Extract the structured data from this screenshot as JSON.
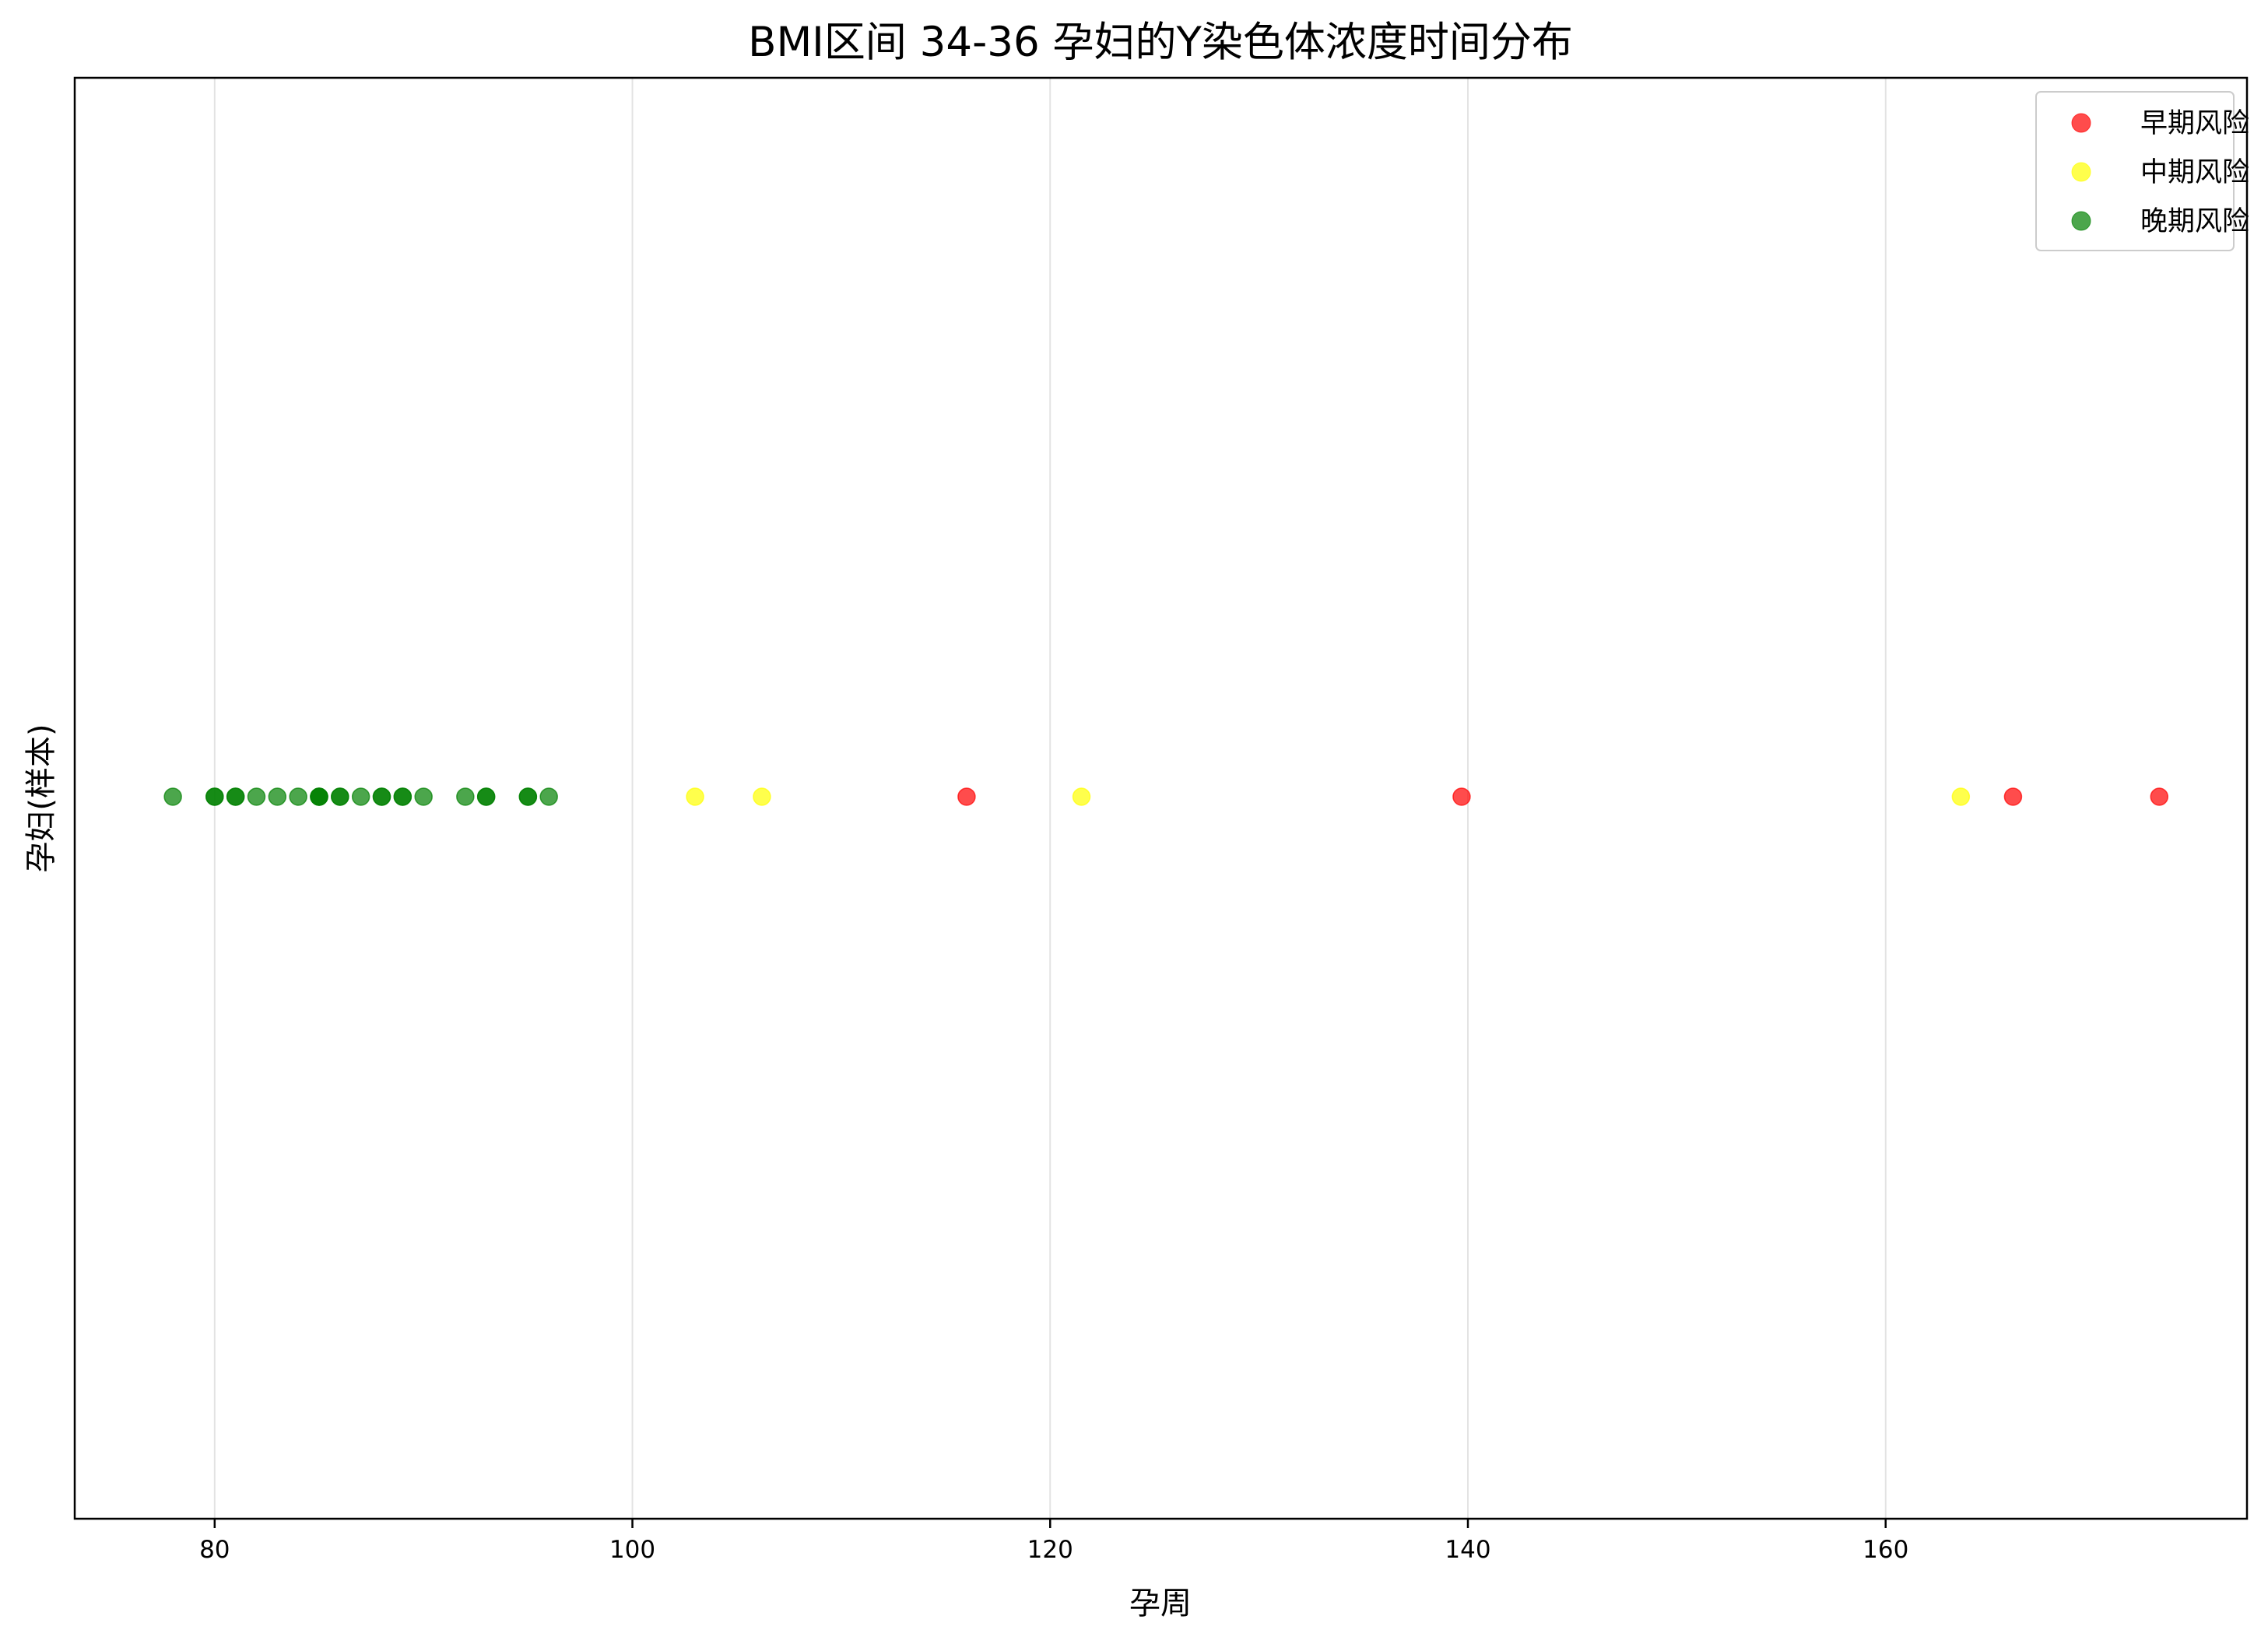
{
  "chart_data": {
    "type": "scatter",
    "title": "BMI区间 34-36 孕妇的Y染色体浓度时间分布",
    "xlabel": "孕周",
    "ylabel": "孕妇(样本)",
    "xlim": [
      73.3,
      177.3
    ],
    "xticks": [
      80,
      100,
      120,
      140,
      160
    ],
    "grid": "vertical",
    "legend": "top-right",
    "series": [
      {
        "name": "早期风险",
        "color": "#ff0000",
        "x": [
          116.0,
          139.7,
          166.1,
          173.1
        ]
      },
      {
        "name": "中期风险",
        "color": "#ffff00",
        "x": [
          103.0,
          106.2,
          121.5,
          163.6
        ]
      },
      {
        "name": "晚期风险",
        "color": "#008000",
        "x": [
          78,
          80,
          80,
          81,
          81,
          82,
          83,
          84,
          85,
          85,
          85,
          86,
          86,
          87,
          88,
          88,
          89,
          89,
          90,
          92,
          93,
          93,
          95,
          95,
          96
        ]
      }
    ]
  }
}
